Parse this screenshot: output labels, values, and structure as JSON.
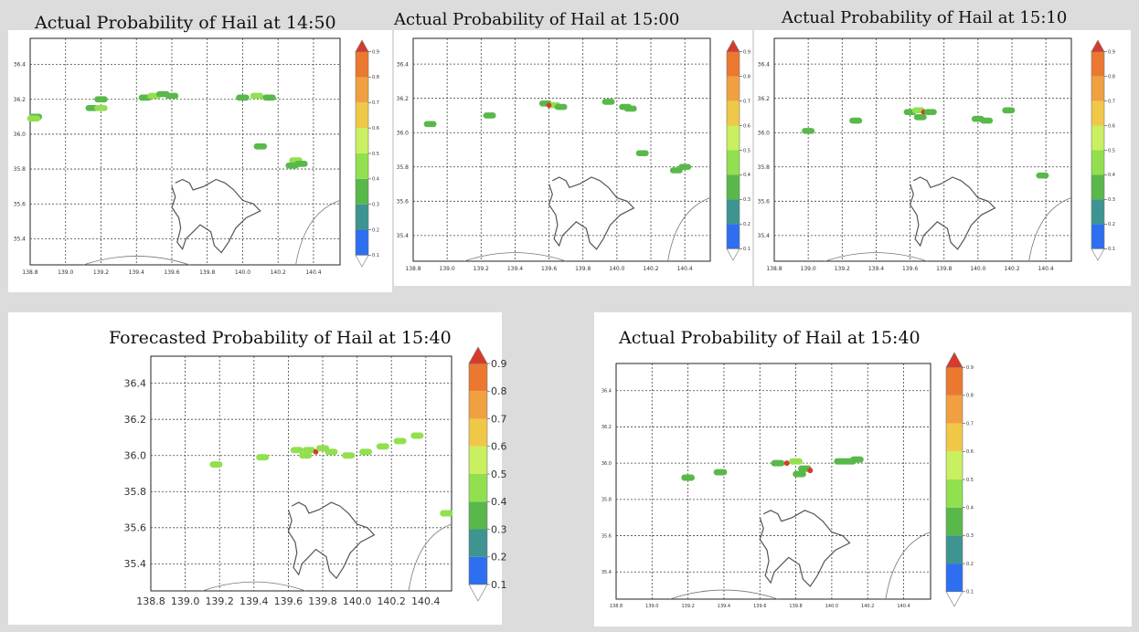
{
  "colorbar": {
    "ticks": [
      "0.1",
      "0.2",
      "0.3",
      "0.4",
      "0.5",
      "0.6",
      "0.7",
      "0.8",
      "0.9"
    ],
    "colors": [
      "#2e6ef0",
      "#3e9490",
      "#59b84a",
      "#92e050",
      "#c8f060",
      "#f0c848",
      "#f0a040",
      "#ec7830"
    ],
    "over_color": "#d83a2a",
    "under_color": "#ffffff"
  },
  "chart_data": [
    {
      "type": "heatmap",
      "title": "Actual Probability of Hail at 14:50",
      "xticks": [
        "138.8",
        "139.0",
        "139.2",
        "139.4",
        "139.6",
        "139.8",
        "140.0",
        "140.2",
        "140.4"
      ],
      "yticks": [
        "36.4",
        "36.2",
        "36.0",
        "35.8",
        "35.6",
        "35.4"
      ],
      "xlim": [
        138.8,
        140.55
      ],
      "ylim": [
        35.25,
        36.55
      ],
      "grid": true,
      "legend": "colorbar-right",
      "cells": [
        {
          "lon": 138.83,
          "lat": 36.1,
          "p": 0.3
        },
        {
          "lon": 138.82,
          "lat": 36.09,
          "p": 0.4
        },
        {
          "lon": 139.15,
          "lat": 36.15,
          "p": 0.3
        },
        {
          "lon": 139.2,
          "lat": 36.2,
          "p": 0.3
        },
        {
          "lon": 139.2,
          "lat": 36.15,
          "p": 0.4
        },
        {
          "lon": 139.45,
          "lat": 36.21,
          "p": 0.3
        },
        {
          "lon": 139.5,
          "lat": 36.22,
          "p": 0.4
        },
        {
          "lon": 139.55,
          "lat": 36.23,
          "p": 0.3
        },
        {
          "lon": 139.6,
          "lat": 36.22,
          "p": 0.3
        },
        {
          "lon": 140.0,
          "lat": 36.21,
          "p": 0.3
        },
        {
          "lon": 140.08,
          "lat": 36.22,
          "p": 0.4
        },
        {
          "lon": 140.15,
          "lat": 36.21,
          "p": 0.3
        },
        {
          "lon": 140.1,
          "lat": 35.93,
          "p": 0.3
        },
        {
          "lon": 140.3,
          "lat": 35.85,
          "p": 0.4
        },
        {
          "lon": 140.28,
          "lat": 35.82,
          "p": 0.3
        },
        {
          "lon": 140.33,
          "lat": 35.83,
          "p": 0.3
        }
      ]
    },
    {
      "type": "heatmap",
      "title": "Actual Probability of Hail at 15:00",
      "xticks": [
        "138.8",
        "139.0",
        "139.2",
        "139.4",
        "139.6",
        "139.8",
        "140.0",
        "140.2",
        "140.4"
      ],
      "yticks": [
        "36.4",
        "36.2",
        "36.0",
        "35.8",
        "35.6",
        "35.4"
      ],
      "xlim": [
        138.8,
        140.55
      ],
      "ylim": [
        35.25,
        36.55
      ],
      "grid": true,
      "legend": "colorbar-right",
      "cells": [
        {
          "lon": 138.9,
          "lat": 36.05,
          "p": 0.3
        },
        {
          "lon": 139.25,
          "lat": 36.1,
          "p": 0.3
        },
        {
          "lon": 139.58,
          "lat": 36.17,
          "p": 0.3
        },
        {
          "lon": 139.63,
          "lat": 36.16,
          "p": 0.4
        },
        {
          "lon": 139.6,
          "lat": 36.16,
          "p": 0.9
        },
        {
          "lon": 139.67,
          "lat": 36.15,
          "p": 0.3
        },
        {
          "lon": 139.95,
          "lat": 36.18,
          "p": 0.3
        },
        {
          "lon": 140.05,
          "lat": 36.15,
          "p": 0.3
        },
        {
          "lon": 140.08,
          "lat": 36.14,
          "p": 0.3
        },
        {
          "lon": 140.15,
          "lat": 35.88,
          "p": 0.3
        },
        {
          "lon": 140.35,
          "lat": 35.78,
          "p": 0.3
        },
        {
          "lon": 140.4,
          "lat": 35.8,
          "p": 0.3
        }
      ]
    },
    {
      "type": "heatmap",
      "title": "Actual Probability of Hail at 15:10",
      "xticks": [
        "138.8",
        "139.0",
        "139.2",
        "139.4",
        "139.6",
        "139.8",
        "140.0",
        "140.2",
        "140.4"
      ],
      "yticks": [
        "36.4",
        "36.2",
        "36.0",
        "35.8",
        "35.6",
        "35.4"
      ],
      "xlim": [
        138.8,
        140.55
      ],
      "ylim": [
        35.25,
        36.55
      ],
      "grid": true,
      "legend": "colorbar-right",
      "cells": [
        {
          "lon": 139.0,
          "lat": 36.01,
          "p": 0.3
        },
        {
          "lon": 139.28,
          "lat": 36.07,
          "p": 0.3
        },
        {
          "lon": 139.6,
          "lat": 36.12,
          "p": 0.3
        },
        {
          "lon": 139.65,
          "lat": 36.13,
          "p": 0.4
        },
        {
          "lon": 139.68,
          "lat": 36.12,
          "p": 0.9
        },
        {
          "lon": 139.72,
          "lat": 36.12,
          "p": 0.3
        },
        {
          "lon": 139.66,
          "lat": 36.09,
          "p": 0.3
        },
        {
          "lon": 140.0,
          "lat": 36.08,
          "p": 0.3
        },
        {
          "lon": 140.05,
          "lat": 36.07,
          "p": 0.3
        },
        {
          "lon": 140.18,
          "lat": 36.13,
          "p": 0.3
        },
        {
          "lon": 140.38,
          "lat": 35.75,
          "p": 0.3
        }
      ]
    },
    {
      "type": "heatmap",
      "title": "Forecasted Probability of Hail at 15:40",
      "xticks": [
        "138.8",
        "139.0",
        "139.2",
        "139.4",
        "139.6",
        "139.8",
        "140.0",
        "140.2",
        "140.4"
      ],
      "yticks": [
        "36.4",
        "36.2",
        "36.0",
        "35.8",
        "35.6",
        "35.4"
      ],
      "xlim": [
        138.8,
        140.55
      ],
      "ylim": [
        35.25,
        36.55
      ],
      "grid": true,
      "legend": "colorbar-right",
      "cells": [
        {
          "lon": 139.18,
          "lat": 35.95,
          "p": 0.4
        },
        {
          "lon": 139.45,
          "lat": 35.99,
          "p": 0.4
        },
        {
          "lon": 139.65,
          "lat": 36.03,
          "p": 0.4
        },
        {
          "lon": 139.72,
          "lat": 36.03,
          "p": 0.4
        },
        {
          "lon": 139.76,
          "lat": 36.02,
          "p": 0.9
        },
        {
          "lon": 139.8,
          "lat": 36.04,
          "p": 0.4
        },
        {
          "lon": 139.85,
          "lat": 36.02,
          "p": 0.4
        },
        {
          "lon": 139.7,
          "lat": 36.0,
          "p": 0.4
        },
        {
          "lon": 139.95,
          "lat": 36.0,
          "p": 0.4
        },
        {
          "lon": 140.05,
          "lat": 36.02,
          "p": 0.4
        },
        {
          "lon": 140.15,
          "lat": 36.05,
          "p": 0.4
        },
        {
          "lon": 140.25,
          "lat": 36.08,
          "p": 0.4
        },
        {
          "lon": 140.35,
          "lat": 36.11,
          "p": 0.4
        },
        {
          "lon": 140.52,
          "lat": 35.68,
          "p": 0.4
        }
      ]
    },
    {
      "type": "heatmap",
      "title": "Actual Probability of Hail at 15:40",
      "xticks": [
        "138.8",
        "139.0",
        "139.2",
        "139.4",
        "139.6",
        "139.8",
        "140.0",
        "140.2",
        "140.4"
      ],
      "yticks": [
        "36.4",
        "36.2",
        "36.0",
        "35.8",
        "35.6",
        "35.4"
      ],
      "xlim": [
        138.8,
        140.55
      ],
      "ylim": [
        35.25,
        36.55
      ],
      "grid": true,
      "legend": "colorbar-right",
      "cells": [
        {
          "lon": 139.2,
          "lat": 35.92,
          "p": 0.3
        },
        {
          "lon": 139.38,
          "lat": 35.95,
          "p": 0.3
        },
        {
          "lon": 139.7,
          "lat": 36.0,
          "p": 0.3
        },
        {
          "lon": 139.75,
          "lat": 36.0,
          "p": 0.9
        },
        {
          "lon": 139.8,
          "lat": 36.01,
          "p": 0.4
        },
        {
          "lon": 139.85,
          "lat": 35.97,
          "p": 0.3
        },
        {
          "lon": 139.88,
          "lat": 35.96,
          "p": 0.9
        },
        {
          "lon": 139.82,
          "lat": 35.94,
          "p": 0.3
        },
        {
          "lon": 140.05,
          "lat": 36.01,
          "p": 0.3
        },
        {
          "lon": 140.1,
          "lat": 36.01,
          "p": 0.3
        },
        {
          "lon": 140.14,
          "lat": 36.02,
          "p": 0.3
        }
      ]
    }
  ]
}
